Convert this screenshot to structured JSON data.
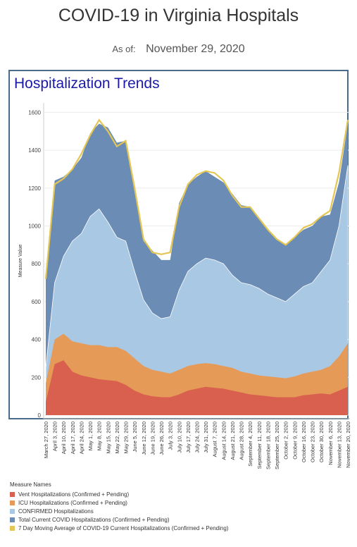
{
  "header": {
    "title": "COVID-19 in Virginia Hospitals",
    "as_of_label": "As of:",
    "as_of_date": "November 29, 2020"
  },
  "chart_data": {
    "type": "area",
    "title": "Hospitalization Trends",
    "ylabel": "Measure Value",
    "xlabel": "",
    "ylim": [
      0,
      1650
    ],
    "yticks": [
      0,
      200,
      400,
      600,
      800,
      1000,
      1200,
      1400,
      1600
    ],
    "grid": true,
    "stacked": false,
    "legend_title": "Measure Names",
    "legend_position": "bottom",
    "x": [
      "March 27, 2020",
      "April 3, 2020",
      "April 10, 2020",
      "April 17, 2020",
      "April 24, 2020",
      "May 1, 2020",
      "May 8, 2020",
      "May 15, 2020",
      "May 22, 2020",
      "May 29, 2020",
      "June 5, 2020",
      "June 12, 2020",
      "June 19, 2020",
      "June 26, 2020",
      "July 3, 2020",
      "July 10, 2020",
      "July 17, 2020",
      "July 24, 2020",
      "July 31, 2020",
      "August 7, 2020",
      "August 14, 2020",
      "August 21, 2020",
      "August 28, 2020",
      "September 4, 2020",
      "September 11, 2020",
      "September 18, 2020",
      "September 25, 2020",
      "October 2, 2020",
      "October 9, 2020",
      "October 16, 2020",
      "October 23, 2020",
      "October 30, 2020",
      "November 6, 2020",
      "November 13, 2020",
      "November 20, 2020"
    ],
    "series": [
      {
        "name": "Total Current COVID Hospitalizations (Confirmed + Pending)",
        "color": "#6a8cb5",
        "values": [
          720,
          1240,
          1260,
          1300,
          1360,
          1490,
          1540,
          1520,
          1440,
          1450,
          1180,
          920,
          870,
          820,
          820,
          1120,
          1220,
          1260,
          1290,
          1260,
          1230,
          1170,
          1110,
          1100,
          1040,
          980,
          930,
          900,
          940,
          980,
          1000,
          1050,
          1060,
          1230,
          1540
        ]
      },
      {
        "name": "CONFIRMED Hospitalizations",
        "color": "#a9c8e4",
        "values": [
          250,
          700,
          840,
          920,
          960,
          1050,
          1090,
          1020,
          940,
          920,
          760,
          610,
          540,
          510,
          520,
          660,
          760,
          800,
          830,
          820,
          800,
          740,
          700,
          690,
          670,
          640,
          620,
          600,
          640,
          680,
          700,
          760,
          820,
          1000,
          1320
        ]
      },
      {
        "name": "ICU Hospitalizations (Confirmed + Pending)",
        "color": "#e69a57",
        "values": [
          170,
          400,
          430,
          390,
          380,
          370,
          370,
          360,
          360,
          340,
          300,
          260,
          240,
          230,
          220,
          240,
          260,
          270,
          275,
          270,
          260,
          250,
          230,
          220,
          210,
          205,
          200,
          195,
          205,
          220,
          230,
          240,
          260,
          310,
          380
        ]
      },
      {
        "name": "Vent Hospitalizations (Confirmed + Pending)",
        "color": "#d9604e",
        "values": [
          70,
          270,
          290,
          230,
          210,
          200,
          190,
          185,
          180,
          160,
          130,
          110,
          100,
          95,
          95,
          110,
          130,
          140,
          150,
          145,
          140,
          130,
          120,
          110,
          105,
          100,
          95,
          95,
          95,
          105,
          110,
          115,
          110,
          130,
          150
        ]
      },
      {
        "name": "7 Day Moving Average of COVID-19 Current Hospitalizations (Confirmed + Pending)",
        "color": "#e3c654",
        "type": "line",
        "values": [
          720,
          1220,
          1250,
          1300,
          1380,
          1480,
          1560,
          1500,
          1420,
          1450,
          1200,
          930,
          860,
          850,
          860,
          1100,
          1220,
          1270,
          1290,
          1280,
          1240,
          1160,
          1100,
          1100,
          1040,
          980,
          930,
          900,
          940,
          990,
          1010,
          1050,
          1080,
          1280,
          1560
        ]
      }
    ]
  }
}
